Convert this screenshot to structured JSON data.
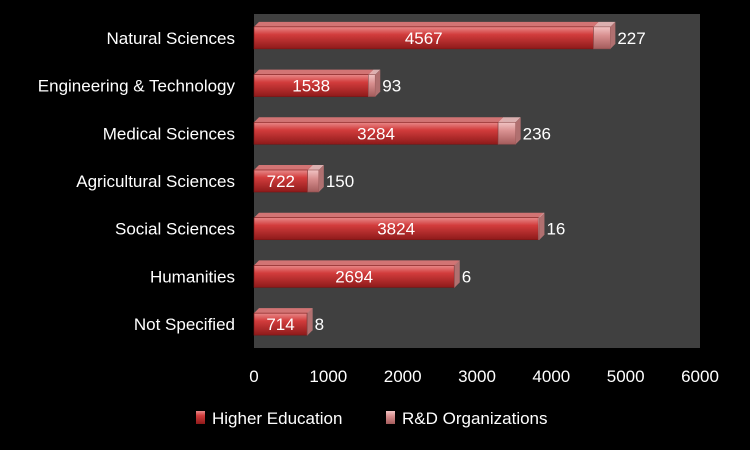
{
  "chart_data": {
    "type": "bar",
    "orientation": "horizontal",
    "stacked": true,
    "categories": [
      "Natural Sciences",
      "Engineering & Technology",
      "Medical Sciences",
      "Agricultural Sciences",
      "Social Sciences",
      "Humanities",
      "Not Specified"
    ],
    "series": [
      {
        "name": "Higher Education",
        "values": [
          4567,
          1538,
          3284,
          722,
          3824,
          2694,
          714
        ],
        "color": "#cc3333"
      },
      {
        "name": "R&D Organizations",
        "values": [
          227,
          93,
          236,
          150,
          16,
          6,
          8
        ],
        "color": "#d98c8c"
      }
    ],
    "xlim": [
      0,
      6000
    ],
    "xticks": [
      0,
      1000,
      2000,
      3000,
      4000,
      5000,
      6000
    ],
    "grid": false,
    "legend_position": "bottom",
    "title": "",
    "xlabel": "",
    "ylabel": ""
  },
  "colors": {
    "background": "#000000",
    "plot_area": "#404040",
    "text": "#ffffff"
  }
}
